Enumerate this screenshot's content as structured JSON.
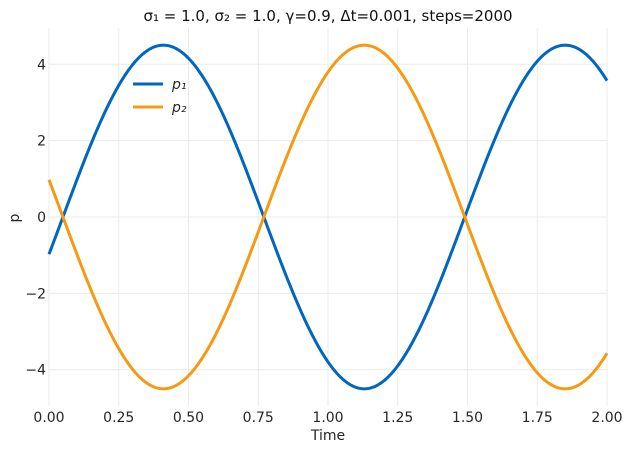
{
  "chart_data": {
    "type": "line",
    "title": "σ₁ = 1.0, σ₂ = 1.0, γ=0.9, Δt=0.001, steps=2000",
    "xlabel": "Time",
    "ylabel": "p",
    "xlim": [
      0.0,
      2.0
    ],
    "ylim": [
      -4.95,
      4.95
    ],
    "xticks": [
      "0.00",
      "0.25",
      "0.50",
      "0.75",
      "1.00",
      "1.25",
      "1.50",
      "1.75",
      "2.00"
    ],
    "yticks": [
      "−4",
      "−2",
      "0",
      "2",
      "4"
    ],
    "grid": true,
    "legend": "upper-left",
    "series": [
      {
        "name": "p₁",
        "color": "#0066c0",
        "amplitude": 4.5,
        "period": 1.44,
        "offset": -0.05,
        "sign": 1,
        "x": [
          0.0,
          0.1,
          0.2,
          0.3,
          0.4,
          0.5,
          0.6,
          0.7,
          0.8,
          0.9,
          1.0,
          1.1,
          1.2,
          1.3,
          1.4,
          1.5,
          1.6,
          1.7,
          1.8,
          1.9,
          2.0
        ],
        "y": [
          -0.98,
          0.98,
          2.68,
          3.9,
          4.48,
          4.31,
          3.42,
          1.94,
          -0.08,
          -2.03,
          -3.48,
          -4.34,
          -4.48,
          -3.87,
          -2.63,
          -0.98,
          0.97,
          2.62,
          3.85,
          4.48,
          3.57
        ]
      },
      {
        "name": "p₂",
        "color": "#f59a12",
        "amplitude": 4.5,
        "period": 1.44,
        "offset": -0.05,
        "sign": -1,
        "x": [
          0.0,
          0.1,
          0.2,
          0.3,
          0.4,
          0.5,
          0.6,
          0.7,
          0.8,
          0.9,
          1.0,
          1.1,
          1.2,
          1.3,
          1.4,
          1.5,
          1.6,
          1.7,
          1.8,
          1.9,
          2.0
        ],
        "y": [
          0.98,
          -0.98,
          -2.68,
          -3.9,
          -4.48,
          -4.31,
          -3.42,
          -1.94,
          0.08,
          2.03,
          3.48,
          4.34,
          4.48,
          3.87,
          2.63,
          0.98,
          -0.97,
          -2.62,
          -3.85,
          -4.48,
          -3.57
        ]
      }
    ]
  }
}
